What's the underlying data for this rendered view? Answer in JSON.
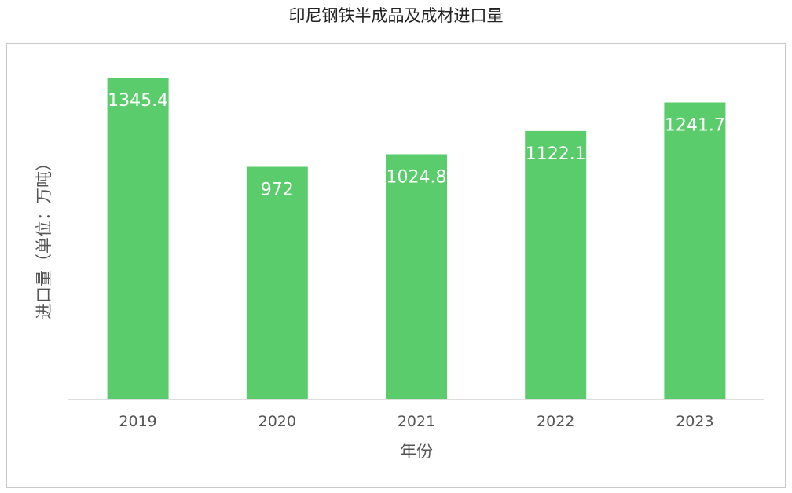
{
  "chart_data": {
    "type": "bar",
    "title": "印尼钢铁半成品及成材进口量",
    "xlabel": "年份",
    "ylabel": "进口量（单位：万吨）",
    "categories": [
      "2019",
      "2020",
      "2021",
      "2022",
      "2023"
    ],
    "values": [
      1345.4,
      972,
      1024.8,
      1122.1,
      1241.7
    ],
    "data_labels": [
      "1345.4",
      "972",
      "1024.8",
      "1122.1",
      "1241.7"
    ],
    "ylim": [
      0,
      1345.4
    ],
    "grid": false,
    "legend": "none",
    "bar_color": "#5bcc6b"
  }
}
